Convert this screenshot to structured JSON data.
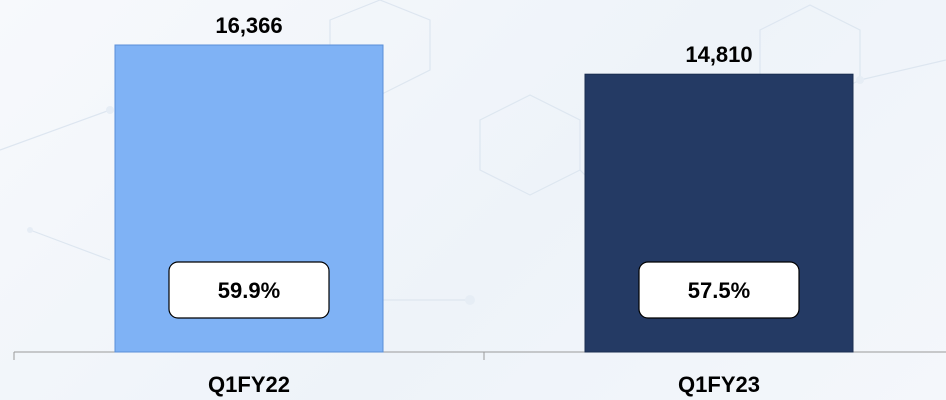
{
  "chart_data": {
    "type": "bar",
    "categories": [
      "Q1FY22",
      "Q1FY23"
    ],
    "values": [
      16366,
      14810
    ],
    "value_labels": [
      "16,366",
      "14,810"
    ],
    "percent_labels": [
      "59.9%",
      "57.5%"
    ],
    "colors": [
      "#7fb2f5",
      "#243a64"
    ],
    "title": "",
    "xlabel": "",
    "ylabel": "",
    "ylim": [
      0,
      16366
    ],
    "grid": false,
    "legend": "none"
  }
}
